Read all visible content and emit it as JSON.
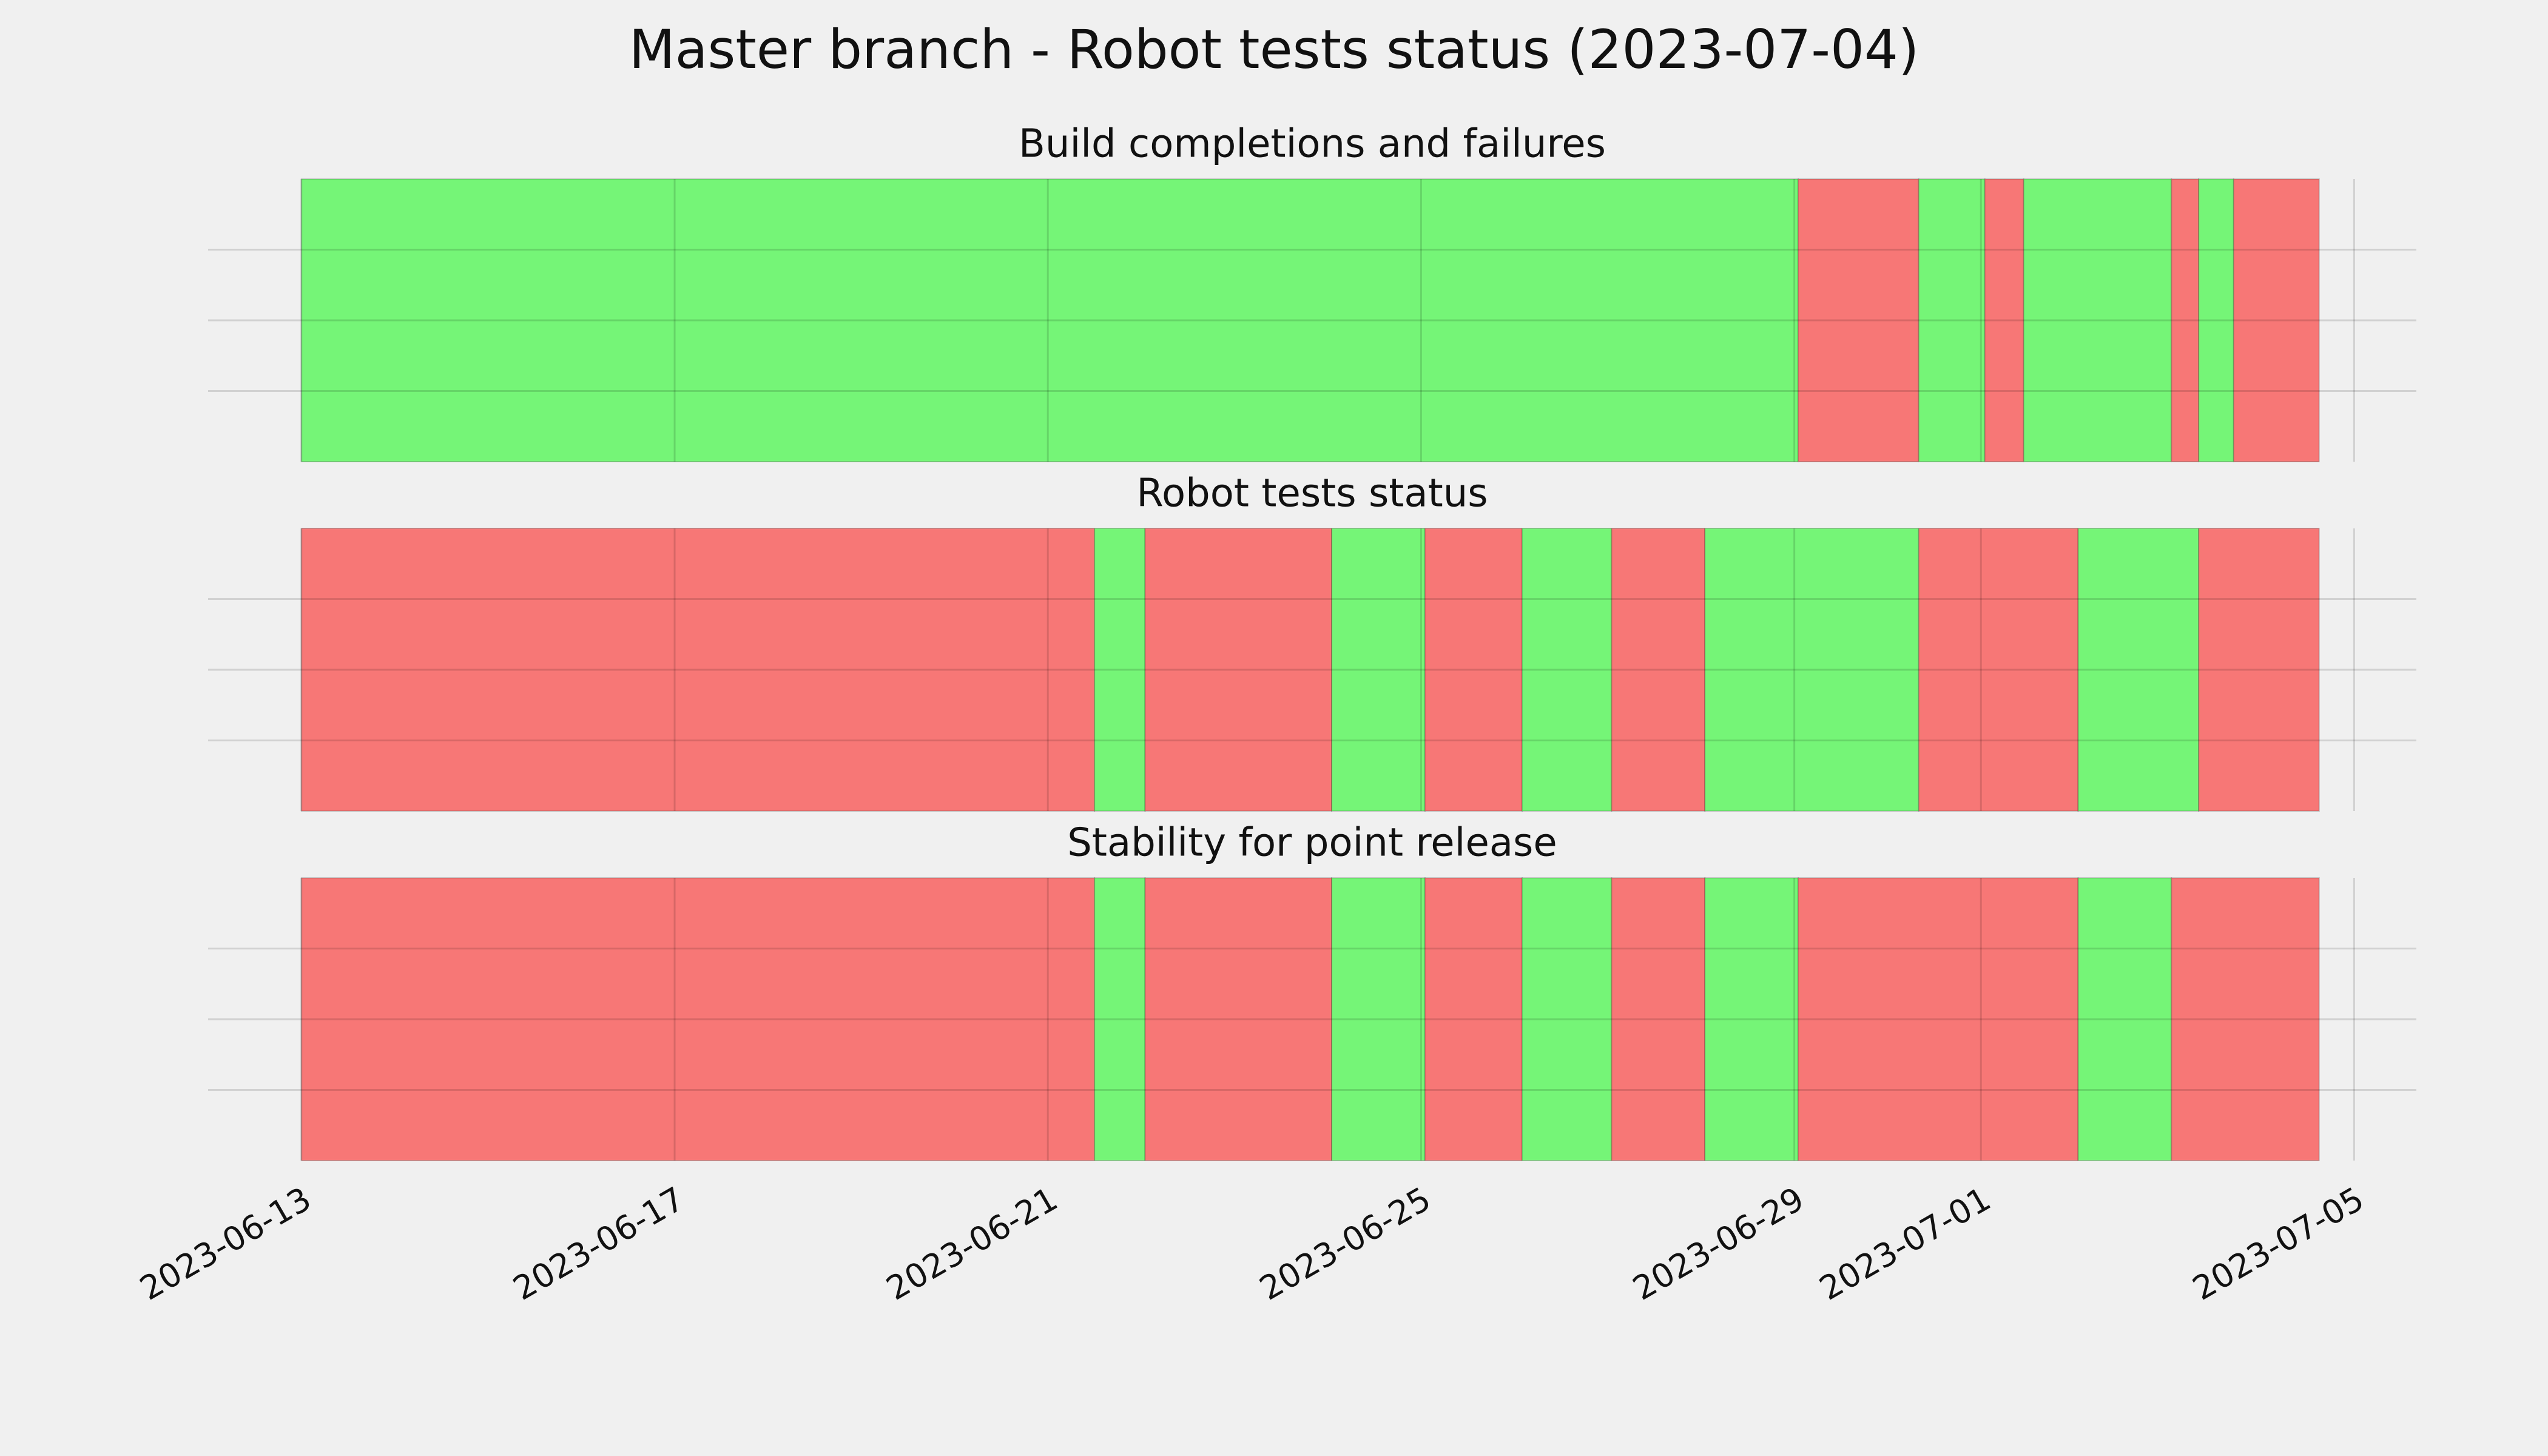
{
  "title": "Master branch - Robot tests status (2023-07-04)",
  "chart_data": [
    {
      "type": "timeline",
      "title": "Build completions and failures",
      "xlim": [
        "2023-06-12T00:00",
        "2023-07-05T16:00"
      ],
      "xticks": [
        "2023-06-13",
        "2023-06-17",
        "2023-06-21",
        "2023-06-25",
        "2023-06-29",
        "2023-07-01",
        "2023-07-05"
      ],
      "ylim": [
        0,
        1
      ],
      "yticks": [
        0.25,
        0.5,
        0.75
      ],
      "grid": true,
      "segments": [
        {
          "start": "2023-06-13T00:00",
          "end": "2023-06-29T01:00",
          "color": "#75f577"
        },
        {
          "start": "2023-06-29T01:00",
          "end": "2023-06-30T08:00",
          "color": "#f77776"
        },
        {
          "start": "2023-06-30T08:00",
          "end": "2023-07-01T01:00",
          "color": "#75f577"
        },
        {
          "start": "2023-07-01T01:00",
          "end": "2023-07-01T11:00",
          "color": "#f77776"
        },
        {
          "start": "2023-07-01T11:00",
          "end": "2023-07-03T01:00",
          "color": "#75f577"
        },
        {
          "start": "2023-07-03T01:00",
          "end": "2023-07-03T08:00",
          "color": "#f77776"
        },
        {
          "start": "2023-07-03T08:00",
          "end": "2023-07-03T17:00",
          "color": "#75f577"
        },
        {
          "start": "2023-07-03T17:00",
          "end": "2023-07-04T15:00",
          "color": "#f77776"
        }
      ]
    },
    {
      "type": "timeline",
      "title": "Robot tests status",
      "xlim": [
        "2023-06-12T00:00",
        "2023-07-05T16:00"
      ],
      "xticks": [
        "2023-06-13",
        "2023-06-17",
        "2023-06-21",
        "2023-06-25",
        "2023-06-29",
        "2023-07-01",
        "2023-07-05"
      ],
      "ylim": [
        0,
        1
      ],
      "yticks": [
        0.25,
        0.5,
        0.75
      ],
      "grid": true,
      "segments": [
        {
          "start": "2023-06-13T00:00",
          "end": "2023-06-21T12:00",
          "color": "#f77776"
        },
        {
          "start": "2023-06-21T12:00",
          "end": "2023-06-22T01:00",
          "color": "#75f577"
        },
        {
          "start": "2023-06-22T01:00",
          "end": "2023-06-24T01:00",
          "color": "#f77776"
        },
        {
          "start": "2023-06-24T01:00",
          "end": "2023-06-25T01:00",
          "color": "#75f577"
        },
        {
          "start": "2023-06-25T01:00",
          "end": "2023-06-26T02:00",
          "color": "#f77776"
        },
        {
          "start": "2023-06-26T02:00",
          "end": "2023-06-27T01:00",
          "color": "#75f577"
        },
        {
          "start": "2023-06-27T01:00",
          "end": "2023-06-28T01:00",
          "color": "#f77776"
        },
        {
          "start": "2023-06-28T01:00",
          "end": "2023-06-30T08:00",
          "color": "#75f577"
        },
        {
          "start": "2023-06-30T08:00",
          "end": "2023-07-02T01:00",
          "color": "#f77776"
        },
        {
          "start": "2023-07-02T01:00",
          "end": "2023-07-03T08:00",
          "color": "#75f577"
        },
        {
          "start": "2023-07-03T08:00",
          "end": "2023-07-04T15:00",
          "color": "#f77776"
        }
      ]
    },
    {
      "type": "timeline",
      "title": "Stability for point release",
      "xlim": [
        "2023-06-12T00:00",
        "2023-07-05T16:00"
      ],
      "xticks": [
        "2023-06-13",
        "2023-06-17",
        "2023-06-21",
        "2023-06-25",
        "2023-06-29",
        "2023-07-01",
        "2023-07-05"
      ],
      "ylim": [
        0,
        1
      ],
      "yticks": [
        0.25,
        0.5,
        0.75
      ],
      "grid": true,
      "show_xtick_labels": true,
      "segments": [
        {
          "start": "2023-06-13T00:00",
          "end": "2023-06-21T12:00",
          "color": "#f77776"
        },
        {
          "start": "2023-06-21T12:00",
          "end": "2023-06-22T01:00",
          "color": "#75f577"
        },
        {
          "start": "2023-06-22T01:00",
          "end": "2023-06-24T01:00",
          "color": "#f77776"
        },
        {
          "start": "2023-06-24T01:00",
          "end": "2023-06-25T01:00",
          "color": "#75f577"
        },
        {
          "start": "2023-06-25T01:00",
          "end": "2023-06-26T02:00",
          "color": "#f77776"
        },
        {
          "start": "2023-06-26T02:00",
          "end": "2023-06-27T01:00",
          "color": "#75f577"
        },
        {
          "start": "2023-06-27T01:00",
          "end": "2023-06-28T01:00",
          "color": "#f77776"
        },
        {
          "start": "2023-06-28T01:00",
          "end": "2023-06-29T01:00",
          "color": "#75f577"
        },
        {
          "start": "2023-06-29T01:00",
          "end": "2023-07-02T01:00",
          "color": "#f77776"
        },
        {
          "start": "2023-07-02T01:00",
          "end": "2023-07-03T01:00",
          "color": "#75f577"
        },
        {
          "start": "2023-07-03T01:00",
          "end": "2023-07-04T15:00",
          "color": "#f77776"
        }
      ]
    }
  ]
}
